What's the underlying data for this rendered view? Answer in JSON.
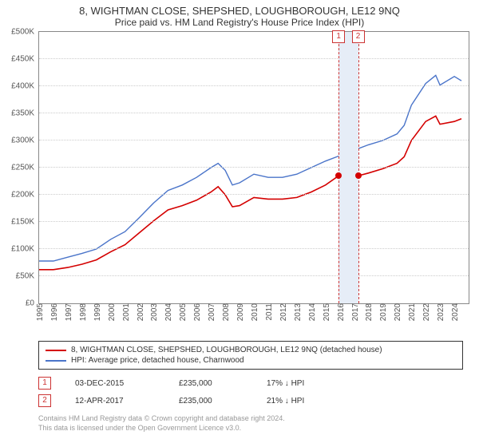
{
  "title": "8, WIGHTMAN CLOSE, SHEPSHED, LOUGHBOROUGH, LE12 9NQ",
  "subtitle": "Price paid vs. HM Land Registry's House Price Index (HPI)",
  "chart": {
    "type": "line",
    "background_color": "#ffffff",
    "grid_color": "#cccccc",
    "axis_color": "#888888",
    "ylim": [
      0,
      500000
    ],
    "ytick_step": 50000,
    "y_prefix": "£",
    "yticks": [
      "£0",
      "£50K",
      "£100K",
      "£150K",
      "£200K",
      "£250K",
      "£300K",
      "£350K",
      "£400K",
      "£450K",
      "£500K"
    ],
    "x_years": [
      1995,
      1996,
      1997,
      1998,
      1999,
      2000,
      2001,
      2002,
      2003,
      2004,
      2005,
      2006,
      2007,
      2008,
      2009,
      2010,
      2011,
      2012,
      2013,
      2014,
      2015,
      2016,
      2017,
      2018,
      2019,
      2020,
      2021,
      2022,
      2023,
      2024
    ],
    "xlim": [
      1995,
      2025
    ],
    "highlight_band": {
      "start": 2015.92,
      "end": 2017.28,
      "color": "#e6edf7"
    },
    "callouts": [
      {
        "label": "1",
        "x_year": 2015.92
      },
      {
        "label": "2",
        "x_year": 2017.28
      }
    ],
    "series": [
      {
        "name": "8, WIGHTMAN CLOSE, SHEPSHED, LOUGHBOROUGH, LE12 9NQ (detached house)",
        "color": "#d40000",
        "line_width": 1.6,
        "points": [
          [
            1995,
            62000
          ],
          [
            1996,
            62000
          ],
          [
            1997,
            66000
          ],
          [
            1998,
            72000
          ],
          [
            1999,
            80000
          ],
          [
            2000,
            95000
          ],
          [
            2001,
            108000
          ],
          [
            2002,
            130000
          ],
          [
            2003,
            152000
          ],
          [
            2004,
            172000
          ],
          [
            2005,
            180000
          ],
          [
            2006,
            190000
          ],
          [
            2007,
            205000
          ],
          [
            2007.5,
            215000
          ],
          [
            2008,
            200000
          ],
          [
            2008.5,
            178000
          ],
          [
            2009,
            180000
          ],
          [
            2010,
            195000
          ],
          [
            2011,
            192000
          ],
          [
            2012,
            192000
          ],
          [
            2013,
            195000
          ],
          [
            2014,
            205000
          ],
          [
            2015,
            218000
          ],
          [
            2015.92,
            235000
          ],
          [
            2017,
            232000
          ],
          [
            2017.28,
            235000
          ],
          [
            2018,
            240000
          ],
          [
            2019,
            248000
          ],
          [
            2020,
            258000
          ],
          [
            2020.5,
            270000
          ],
          [
            2021,
            300000
          ],
          [
            2022,
            335000
          ],
          [
            2022.7,
            345000
          ],
          [
            2023,
            330000
          ],
          [
            2024,
            335000
          ],
          [
            2024.5,
            340000
          ]
        ]
      },
      {
        "name": "HPI: Average price, detached house, Charnwood",
        "color": "#4a74c9",
        "line_width": 1.4,
        "points": [
          [
            1995,
            78000
          ],
          [
            1996,
            78000
          ],
          [
            1997,
            85000
          ],
          [
            1998,
            92000
          ],
          [
            1999,
            100000
          ],
          [
            2000,
            118000
          ],
          [
            2001,
            132000
          ],
          [
            2002,
            158000
          ],
          [
            2003,
            185000
          ],
          [
            2004,
            208000
          ],
          [
            2005,
            218000
          ],
          [
            2006,
            232000
          ],
          [
            2007,
            250000
          ],
          [
            2007.5,
            258000
          ],
          [
            2008,
            245000
          ],
          [
            2008.5,
            218000
          ],
          [
            2009,
            222000
          ],
          [
            2010,
            238000
          ],
          [
            2011,
            232000
          ],
          [
            2012,
            232000
          ],
          [
            2013,
            238000
          ],
          [
            2014,
            250000
          ],
          [
            2015,
            262000
          ],
          [
            2016,
            272000
          ],
          [
            2017,
            282000
          ],
          [
            2018,
            292000
          ],
          [
            2019,
            300000
          ],
          [
            2020,
            312000
          ],
          [
            2020.5,
            328000
          ],
          [
            2021,
            365000
          ],
          [
            2022,
            405000
          ],
          [
            2022.7,
            420000
          ],
          [
            2023,
            402000
          ],
          [
            2024,
            418000
          ],
          [
            2024.5,
            410000
          ]
        ]
      }
    ],
    "markers": [
      {
        "x_year": 2015.92,
        "y": 235000,
        "color": "#d40000"
      },
      {
        "x_year": 2017.28,
        "y": 235000,
        "color": "#d40000"
      }
    ]
  },
  "legend": {
    "items": [
      {
        "color": "#d40000",
        "label": "8, WIGHTMAN CLOSE, SHEPSHED, LOUGHBOROUGH, LE12 9NQ (detached house)"
      },
      {
        "color": "#4a74c9",
        "label": "HPI: Average price, detached house, Charnwood"
      }
    ]
  },
  "sales": [
    {
      "num": "1",
      "date": "03-DEC-2015",
      "price": "£235,000",
      "diff": "17% ↓ HPI"
    },
    {
      "num": "2",
      "date": "12-APR-2017",
      "price": "£235,000",
      "diff": "21% ↓ HPI"
    }
  ],
  "attribution": {
    "line1": "Contains HM Land Registry data © Crown copyright and database right 2024.",
    "line2": "This data is licensed under the Open Government Licence v3.0."
  }
}
